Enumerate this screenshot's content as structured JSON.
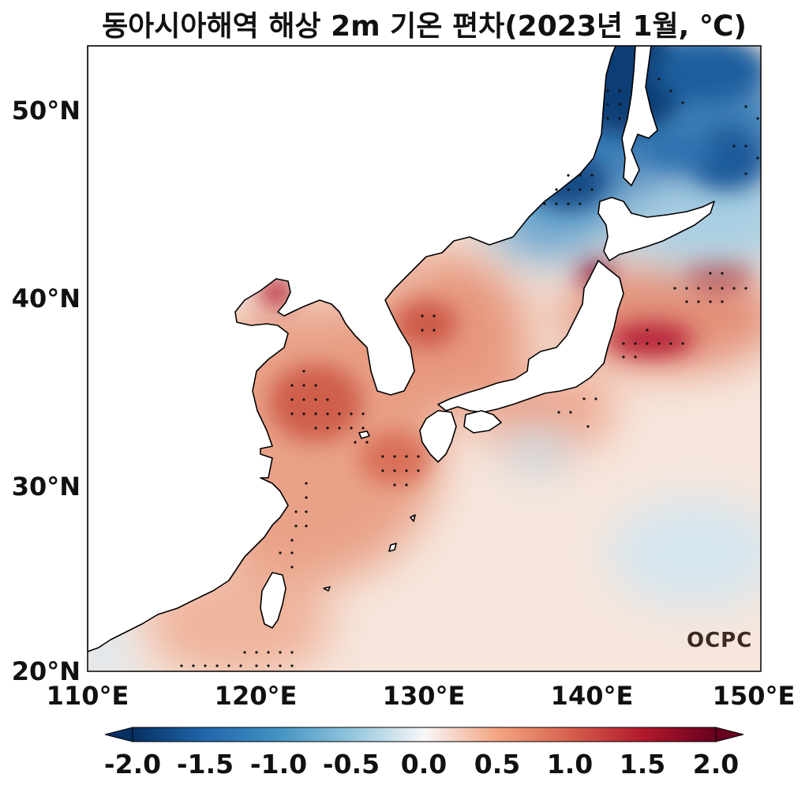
{
  "title": "동아시아해역 해상 2m 기온 편차(2023년 1월, ℃)",
  "logo_text": "OCPC",
  "lat_labels": [
    "50°N",
    "40°N",
    "30°N",
    "20°N"
  ],
  "lon_labels": [
    "110°E",
    "120°E",
    "130°E",
    "140°E",
    "150°E"
  ],
  "colorbar": {
    "ticks": [
      "-2.0",
      "-1.5",
      "-1.0",
      "-0.5",
      "0.0",
      "0.5",
      "1.0",
      "1.5",
      "2.0"
    ],
    "colormap": "RdBu_r",
    "colors": [
      "#053061",
      "#2166ac",
      "#4393c3",
      "#92c5de",
      "#f7f7f7",
      "#f4a582",
      "#d6604d",
      "#b2182b",
      "#67001f"
    ]
  },
  "map": {
    "lon_range": [
      110,
      150
    ],
    "lat_range": [
      20,
      53.5
    ],
    "variable": "해상 2m 기온 편차",
    "unit": "℃"
  }
}
